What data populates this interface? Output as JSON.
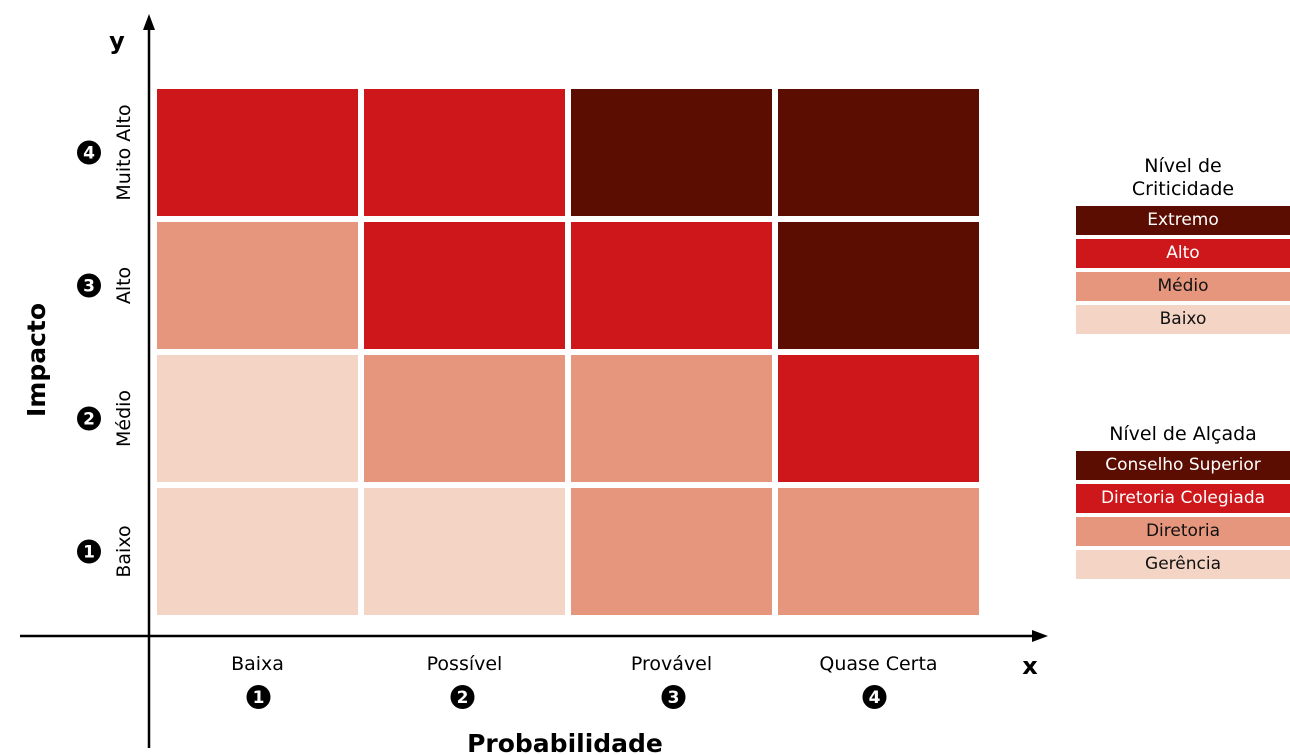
{
  "chart_data": {
    "type": "heatmap",
    "title": "",
    "xlabel": "Probabilidade",
    "ylabel": "Impacto",
    "x_axis_letter": "x",
    "y_axis_letter": "y",
    "x_categories": [
      {
        "label": "Baixa",
        "number": "1"
      },
      {
        "label": "Possível",
        "number": "2"
      },
      {
        "label": "Provável",
        "number": "3"
      },
      {
        "label": "Quase Certa",
        "number": "4"
      }
    ],
    "y_categories": [
      {
        "label": "Baixo",
        "number": "1"
      },
      {
        "label": "Médio",
        "number": "2"
      },
      {
        "label": "Alto",
        "number": "3"
      },
      {
        "label": "Muito Alto",
        "number": "4"
      }
    ],
    "matrix_rows_bottom_to_top": [
      [
        "Baixo",
        "Baixo",
        "Médio",
        "Médio"
      ],
      [
        "Baixo",
        "Médio",
        "Médio",
        "Alto"
      ],
      [
        "Médio",
        "Alto",
        "Alto",
        "Extremo"
      ],
      [
        "Alto",
        "Alto",
        "Extremo",
        "Extremo"
      ]
    ],
    "level_colors": {
      "Extremo": "#5c0d02",
      "Alto": "#cd171a",
      "Médio": "#e6967c",
      "Baixo": "#f4d4c4"
    },
    "legends": [
      {
        "title_lines": [
          "Nível de",
          "Criticidade"
        ],
        "items": [
          {
            "label": "Extremo",
            "level": "Extremo"
          },
          {
            "label": "Alto",
            "level": "Alto"
          },
          {
            "label": "Médio",
            "level": "Médio"
          },
          {
            "label": "Baixo",
            "level": "Baixo"
          }
        ]
      },
      {
        "title_lines": [
          "Nível de Alçada"
        ],
        "items": [
          {
            "label": "Conselho Superior",
            "level": "Extremo"
          },
          {
            "label": "Diretoria Colegiada",
            "level": "Alto"
          },
          {
            "label": "Diretoria",
            "level": "Médio"
          },
          {
            "label": "Gerência",
            "level": "Baixo"
          }
        ]
      }
    ]
  }
}
